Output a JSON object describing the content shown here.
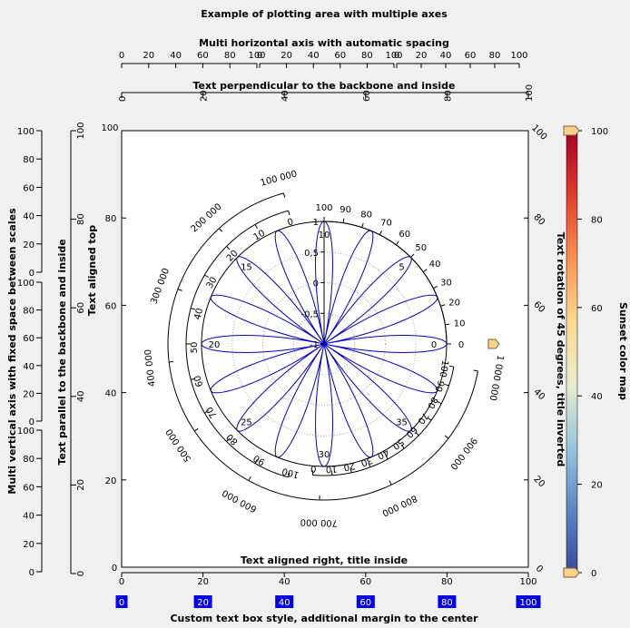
{
  "chart_data": {
    "type": "line",
    "title": "Example of plotting area with multiple axes",
    "top": {
      "multi": {
        "title": "Multi horizontal axis with automatic spacing",
        "ticks": [
          "0",
          "20",
          "40",
          "60",
          "80",
          "100"
        ],
        "count": 3
      },
      "perp": {
        "title": "Text perpendicular to the backbone and inside",
        "ticks": [
          "0",
          "20",
          "40",
          "60",
          "80",
          "100"
        ]
      }
    },
    "bottom": {
      "inner": {
        "title": "Text aligned right, title inside",
        "ticks": [
          "0",
          "20",
          "40",
          "60",
          "80",
          "100"
        ]
      },
      "boxed": {
        "title": "Custom text box style, additional margin to the center",
        "ticks": [
          "0",
          "20",
          "40",
          "60",
          "80",
          "100"
        ],
        "box_color": "#0000e0"
      }
    },
    "left": {
      "multi": {
        "title": "Multi vertical axis with fixed space between scales",
        "ticks": [
          "0",
          "20",
          "40",
          "60",
          "80",
          "100"
        ],
        "count": 3
      },
      "parallel": {
        "title": "Text parallel to the backbone and inside",
        "ticks": [
          "0",
          "20",
          "40",
          "60",
          "80",
          "100"
        ]
      },
      "top": {
        "title": "Text aligned top",
        "ticks": [
          "0",
          "20",
          "40",
          "60",
          "80",
          "100"
        ]
      }
    },
    "right": {
      "rot45": {
        "title": "Text rotation of 45 degrees, title inverted",
        "ticks": [
          "0",
          "20",
          "40",
          "60",
          "80",
          "100"
        ]
      },
      "colormap": {
        "title": "Sunset color map",
        "ticks": [
          "0",
          "20",
          "40",
          "60",
          "80",
          "100"
        ],
        "colors": [
          "#3a4a9c",
          "#5b86c2",
          "#98c6de",
          "#eaeccc",
          "#fed98e",
          "#f98e52",
          "#dc3d2d",
          "#a50026"
        ]
      }
    },
    "polar": {
      "radial_ticks": [
        "-1",
        "-0,5",
        "0",
        "0,5",
        "1"
      ],
      "angular_outer": {
        "ticks": [
          "0",
          "10",
          "20",
          "30",
          "40",
          "50",
          "60",
          "70",
          "80",
          "90",
          "100"
        ]
      },
      "angular_inner": {
        "ticks": [
          "0",
          "5",
          "10",
          "15",
          "20",
          "25",
          "30",
          "35"
        ]
      },
      "arc_mid": {
        "ticks": [
          "0",
          "10",
          "20",
          "30",
          "40",
          "50",
          "60",
          "70",
          "80",
          "90",
          "100"
        ]
      },
      "arc_big": {
        "ticks": [
          "100 000",
          "200 000",
          "300 000",
          "400 000",
          "500 000",
          "600 000",
          "700 000",
          "800 000",
          "900 000",
          "1 000 000"
        ]
      },
      "arc_outer": {
        "ticks": [
          "0",
          "10",
          "20",
          "30",
          "40",
          "50",
          "60",
          "70",
          "80",
          "90",
          "100"
        ]
      }
    },
    "series": [
      {
        "type": "rose",
        "petals": 16,
        "r_min": 0,
        "r_max": 1,
        "color": "#0000cc"
      }
    ]
  }
}
